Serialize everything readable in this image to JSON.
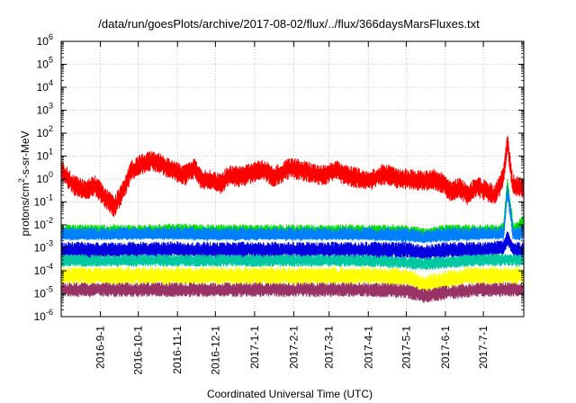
{
  "chart_data": {
    "type": "line",
    "title": "/data/run/goesPlots/archive/2017-08-02/flux/../flux/366daysMarsFluxes.txt",
    "xlabel": "Coordinated Universal Time (UTC)",
    "ylabel": "protons/cm2-s-sr-MeV",
    "ylabel_parts": {
      "pre": "protons/cm",
      "sup": "2",
      "post": "-s-sr-MeV"
    },
    "yscale": "log",
    "ylim": [
      1e-06,
      1000000
    ],
    "xlim": [
      "2016-08-01",
      "2017-08-02"
    ],
    "grid": true,
    "y_ticks": [
      {
        "base": "10",
        "exp": "-6",
        "value": 1e-06
      },
      {
        "base": "10",
        "exp": "-5",
        "value": 1e-05
      },
      {
        "base": "10",
        "exp": "-4",
        "value": 0.0001
      },
      {
        "base": "10",
        "exp": "-3",
        "value": 0.001
      },
      {
        "base": "10",
        "exp": "-2",
        "value": 0.01
      },
      {
        "base": "10",
        "exp": "-1",
        "value": 0.1
      },
      {
        "base": "10",
        "exp": "0",
        "value": 1
      },
      {
        "base": "10",
        "exp": "1",
        "value": 10
      },
      {
        "base": "10",
        "exp": "2",
        "value": 100
      },
      {
        "base": "10",
        "exp": "3",
        "value": 1000
      },
      {
        "base": "10",
        "exp": "4",
        "value": 10000
      },
      {
        "base": "10",
        "exp": "5",
        "value": 100000
      },
      {
        "base": "10",
        "exp": "6",
        "value": 1000000
      }
    ],
    "x_ticks": [
      {
        "label": "2016-9-1",
        "date": "2016-09-01"
      },
      {
        "label": "2016-10-1",
        "date": "2016-10-01"
      },
      {
        "label": "2016-11-1",
        "date": "2016-11-01"
      },
      {
        "label": "2016-12-1",
        "date": "2016-12-01"
      },
      {
        "label": "2017-1-1",
        "date": "2017-01-01"
      },
      {
        "label": "2017-2-1",
        "date": "2017-02-01"
      },
      {
        "label": "2017-3-1",
        "date": "2017-03-01"
      },
      {
        "label": "2017-4-1",
        "date": "2017-04-01"
      },
      {
        "label": "2017-5-1",
        "date": "2017-05-01"
      },
      {
        "label": "2017-6-1",
        "date": "2017-06-01"
      },
      {
        "label": "2017-7-1",
        "date": "2017-07-01"
      }
    ],
    "series": [
      {
        "color": "#ff0000",
        "x": [
          "2016-08-01",
          "2016-08-10",
          "2016-08-20",
          "2016-08-28",
          "2016-09-05",
          "2016-09-12",
          "2016-09-19",
          "2016-09-26",
          "2016-10-03",
          "2016-10-10",
          "2016-10-17",
          "2016-10-24",
          "2016-10-31",
          "2016-11-07",
          "2016-11-14",
          "2016-11-21",
          "2016-11-28",
          "2016-12-05",
          "2016-12-12",
          "2016-12-19",
          "2016-12-26",
          "2017-01-02",
          "2017-01-09",
          "2017-01-16",
          "2017-01-23",
          "2017-01-30",
          "2017-02-06",
          "2017-02-13",
          "2017-02-20",
          "2017-02-27",
          "2017-03-06",
          "2017-03-13",
          "2017-03-20",
          "2017-03-27",
          "2017-04-03",
          "2017-04-10",
          "2017-04-17",
          "2017-04-24",
          "2017-05-01",
          "2017-05-08",
          "2017-05-15",
          "2017-05-22",
          "2017-05-29",
          "2017-06-05",
          "2017-06-12",
          "2017-06-19",
          "2017-06-26",
          "2017-07-03",
          "2017-07-10",
          "2017-07-14",
          "2017-07-17",
          "2017-07-20",
          "2017-07-24",
          "2017-07-28",
          "2017-08-02"
        ],
        "y": [
          2.5,
          0.6,
          0.3,
          0.5,
          0.15,
          0.06,
          0.3,
          2.5,
          4,
          6,
          5,
          3,
          2,
          1.5,
          3,
          0.8,
          1,
          0.6,
          1.5,
          1.2,
          1.5,
          2,
          2.5,
          1.2,
          2,
          3,
          2.5,
          2,
          1.5,
          1.5,
          2.5,
          1.5,
          1.2,
          1,
          0.8,
          1.5,
          1.5,
          1,
          1,
          0.9,
          0.8,
          1,
          0.7,
          0.3,
          0.4,
          0.2,
          0.5,
          0.3,
          0.2,
          0.5,
          1.5,
          45,
          0.6,
          0.5,
          0.4
        ],
        "band": [
          2,
          2
        ]
      },
      {
        "color": "#00e000",
        "x": [
          "2016-08-01",
          "2016-09-01",
          "2016-10-01",
          "2016-11-01",
          "2016-12-01",
          "2017-01-01",
          "2017-02-01",
          "2017-03-01",
          "2017-04-01",
          "2017-05-01",
          "2017-05-15",
          "2017-06-01",
          "2017-06-20",
          "2017-07-01",
          "2017-07-10",
          "2017-07-17",
          "2017-07-20",
          "2017-07-25",
          "2017-08-02"
        ],
        "y": [
          0.005,
          0.005,
          0.005,
          0.0055,
          0.005,
          0.005,
          0.005,
          0.005,
          0.005,
          0.005,
          0.0035,
          0.005,
          0.005,
          0.005,
          0.005,
          0.006,
          0.6,
          0.005,
          0.015
        ],
        "band": [
          1.6,
          1.6
        ]
      },
      {
        "color": "#0080ff",
        "x": [
          "2016-08-01",
          "2016-09-01",
          "2016-10-01",
          "2016-11-01",
          "2016-12-01",
          "2017-01-01",
          "2017-02-01",
          "2017-03-01",
          "2017-04-01",
          "2017-05-01",
          "2017-05-15",
          "2017-06-01",
          "2017-06-20",
          "2017-07-01",
          "2017-07-10",
          "2017-07-17",
          "2017-07-20",
          "2017-07-25",
          "2017-08-02"
        ],
        "y": [
          0.0035,
          0.0035,
          0.0035,
          0.0038,
          0.0035,
          0.0035,
          0.0035,
          0.0035,
          0.0035,
          0.0035,
          0.0025,
          0.0035,
          0.0035,
          0.0035,
          0.0035,
          0.004,
          0.3,
          0.003,
          0.005
        ],
        "band": [
          1.7,
          1.7
        ]
      },
      {
        "color": "#ffffff",
        "x": [
          "2016-08-01",
          "2016-10-01",
          "2016-12-01",
          "2017-02-01",
          "2017-04-01",
          "2017-05-15",
          "2017-06-20",
          "2017-07-17",
          "2017-08-02"
        ],
        "y": [
          0.0016,
          0.0017,
          0.0016,
          0.0016,
          0.0016,
          0.0012,
          0.0016,
          0.0018,
          0.0015
        ],
        "band": [
          1.3,
          1.3
        ]
      },
      {
        "color": "#0000e0",
        "x": [
          "2016-08-01",
          "2016-09-01",
          "2016-10-01",
          "2016-11-01",
          "2016-12-01",
          "2017-01-01",
          "2017-02-01",
          "2017-03-01",
          "2017-04-01",
          "2017-05-01",
          "2017-05-15",
          "2017-06-01",
          "2017-06-20",
          "2017-07-01",
          "2017-07-17",
          "2017-07-20",
          "2017-07-25",
          "2017-08-02"
        ],
        "y": [
          0.0008,
          0.0008,
          0.0008,
          0.00085,
          0.0008,
          0.0008,
          0.0008,
          0.0008,
          0.0008,
          0.0008,
          0.0006,
          0.0008,
          0.0008,
          0.0008,
          0.001,
          0.003,
          0.0008,
          0.0008
        ],
        "band": [
          1.7,
          1.7
        ]
      },
      {
        "color": "#00c8a0",
        "x": [
          "2016-08-01",
          "2016-10-01",
          "2016-12-01",
          "2017-02-01",
          "2017-04-01",
          "2017-05-15",
          "2017-06-20",
          "2017-07-17",
          "2017-08-02"
        ],
        "y": [
          0.00028,
          0.00028,
          0.00028,
          0.00028,
          0.00028,
          0.0002,
          0.00028,
          0.0003,
          0.00028
        ],
        "band": [
          1.5,
          1.5
        ]
      },
      {
        "color": "#ffff00",
        "x": [
          "2016-08-01",
          "2016-10-01",
          "2016-12-01",
          "2017-02-01",
          "2017-04-01",
          "2017-05-01",
          "2017-05-15",
          "2017-06-01",
          "2017-06-20",
          "2017-07-17",
          "2017-08-02"
        ],
        "y": [
          6e-05,
          6e-05,
          6e-05,
          6e-05,
          6e-05,
          5e-05,
          2.5e-05,
          4e-05,
          6e-05,
          6e-05,
          6e-05
        ],
        "band": [
          1.8,
          1.8
        ]
      },
      {
        "color": "#993366",
        "x": [
          "2016-08-01",
          "2016-10-01",
          "2016-12-01",
          "2017-02-01",
          "2017-04-01",
          "2017-05-01",
          "2017-05-15",
          "2017-06-01",
          "2017-06-20",
          "2017-07-01",
          "2017-07-17",
          "2017-08-02"
        ],
        "y": [
          1.5e-05,
          1.5e-05,
          1.5e-05,
          1.5e-05,
          1.5e-05,
          1.3e-05,
          8e-06,
          1.1e-05,
          1.4e-05,
          1.5e-05,
          1.5e-05,
          1.5e-05
        ],
        "band": [
          1.6,
          1.6
        ]
      }
    ]
  }
}
